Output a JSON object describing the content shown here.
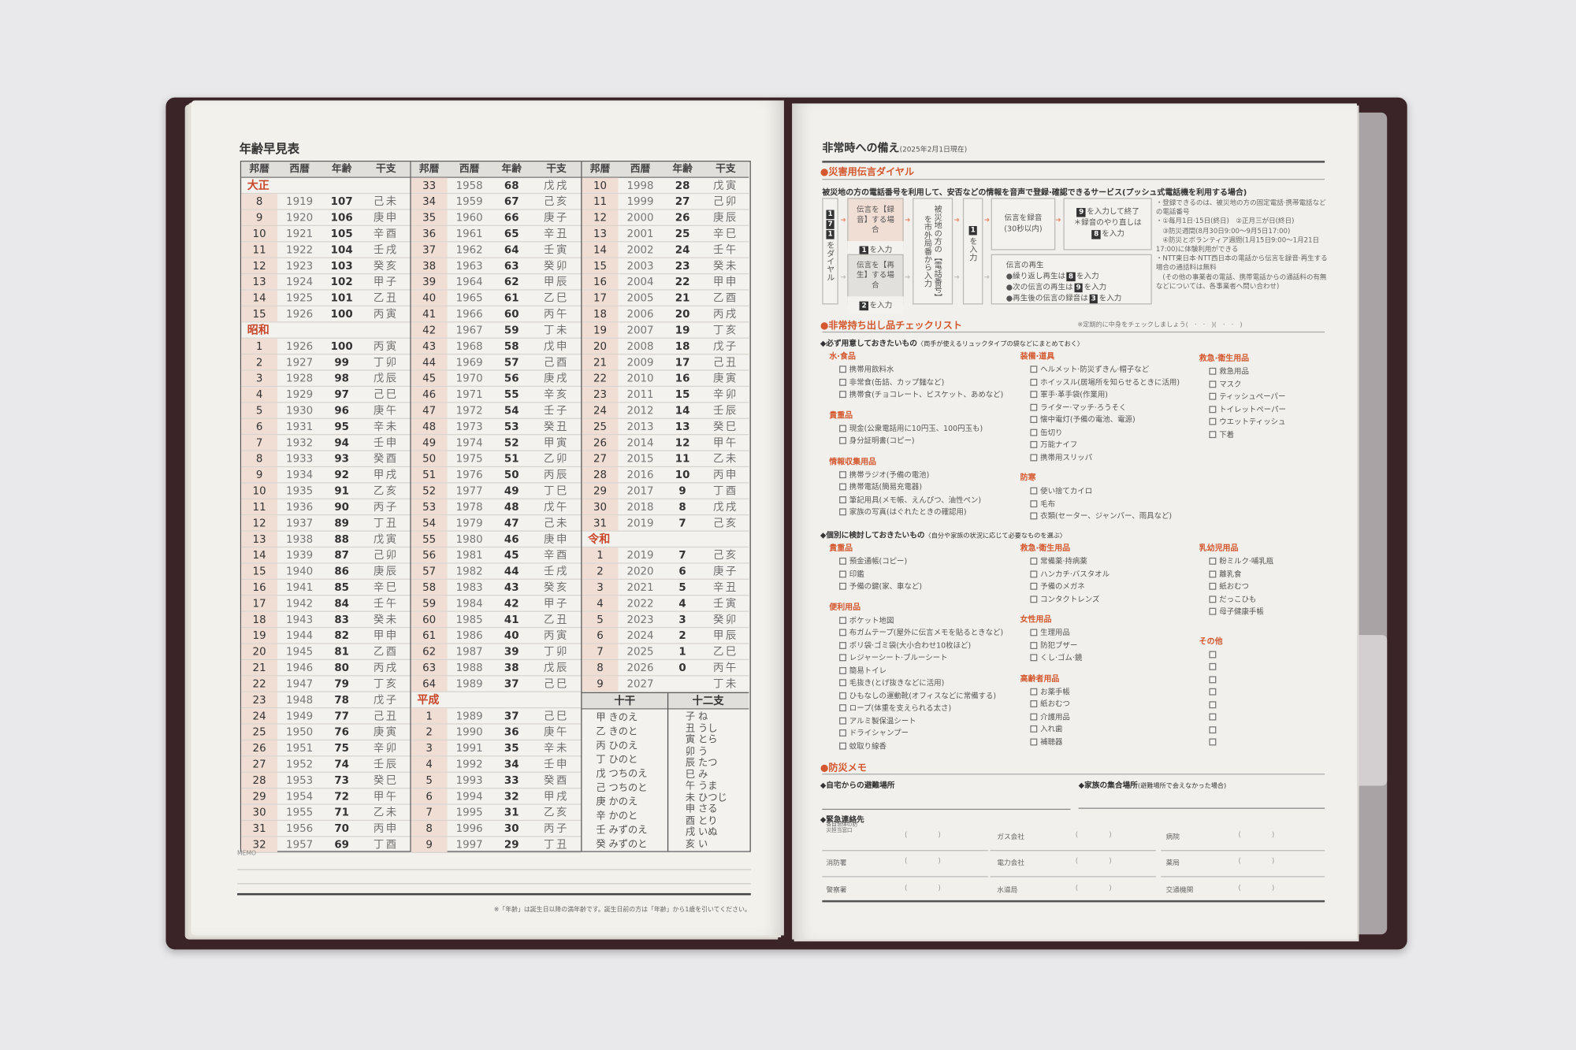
{
  "colors": {
    "accent": "#d4582f",
    "cover": "#3b2427",
    "era_cell": "#f0ddd4"
  },
  "left_page": {
    "title": "年齢早見表",
    "headers": [
      "邦暦",
      "西暦",
      "年齢",
      "干支"
    ],
    "columns": [
      {
        "rows": [
          {
            "era": "大正"
          },
          [
            "8",
            "1919",
            "107",
            "己未"
          ],
          [
            "9",
            "1920",
            "106",
            "庚申"
          ],
          [
            "10",
            "1921",
            "105",
            "辛酉"
          ],
          [
            "11",
            "1922",
            "104",
            "壬戌"
          ],
          [
            "12",
            "1923",
            "103",
            "癸亥"
          ],
          [
            "13",
            "1924",
            "102",
            "甲子"
          ],
          [
            "14",
            "1925",
            "101",
            "乙丑"
          ],
          [
            "15",
            "1926",
            "100",
            "丙寅"
          ],
          {
            "era": "昭和"
          },
          [
            "1",
            "1926",
            "100",
            "丙寅"
          ],
          [
            "2",
            "1927",
            "99",
            "丁卯"
          ],
          [
            "3",
            "1928",
            "98",
            "戊辰"
          ],
          [
            "4",
            "1929",
            "97",
            "己巳"
          ],
          [
            "5",
            "1930",
            "96",
            "庚午"
          ],
          [
            "6",
            "1931",
            "95",
            "辛未"
          ],
          [
            "7",
            "1932",
            "94",
            "壬申"
          ],
          [
            "8",
            "1933",
            "93",
            "癸酉"
          ],
          [
            "9",
            "1934",
            "92",
            "甲戌"
          ],
          [
            "10",
            "1935",
            "91",
            "乙亥"
          ],
          [
            "11",
            "1936",
            "90",
            "丙子"
          ],
          [
            "12",
            "1937",
            "89",
            "丁丑"
          ],
          [
            "13",
            "1938",
            "88",
            "戊寅"
          ],
          [
            "14",
            "1939",
            "87",
            "己卯"
          ],
          [
            "15",
            "1940",
            "86",
            "庚辰"
          ],
          [
            "16",
            "1941",
            "85",
            "辛巳"
          ],
          [
            "17",
            "1942",
            "84",
            "壬午"
          ],
          [
            "18",
            "1943",
            "83",
            "癸未"
          ],
          [
            "19",
            "1944",
            "82",
            "甲申"
          ],
          [
            "20",
            "1945",
            "81",
            "乙酉"
          ],
          [
            "21",
            "1946",
            "80",
            "丙戌"
          ],
          [
            "22",
            "1947",
            "79",
            "丁亥"
          ],
          [
            "23",
            "1948",
            "78",
            "戊子"
          ],
          [
            "24",
            "1949",
            "77",
            "己丑"
          ],
          [
            "25",
            "1950",
            "76",
            "庚寅"
          ],
          [
            "26",
            "1951",
            "75",
            "辛卯"
          ],
          [
            "27",
            "1952",
            "74",
            "壬辰"
          ],
          [
            "28",
            "1953",
            "73",
            "癸巳"
          ],
          [
            "29",
            "1954",
            "72",
            "甲午"
          ],
          [
            "30",
            "1955",
            "71",
            "乙未"
          ],
          [
            "31",
            "1956",
            "70",
            "丙申"
          ],
          [
            "32",
            "1957",
            "69",
            "丁酉"
          ]
        ]
      },
      {
        "rows": [
          [
            "33",
            "1958",
            "68",
            "戊戌"
          ],
          [
            "34",
            "1959",
            "67",
            "己亥"
          ],
          [
            "35",
            "1960",
            "66",
            "庚子"
          ],
          [
            "36",
            "1961",
            "65",
            "辛丑"
          ],
          [
            "37",
            "1962",
            "64",
            "壬寅"
          ],
          [
            "38",
            "1963",
            "63",
            "癸卯"
          ],
          [
            "39",
            "1964",
            "62",
            "甲辰"
          ],
          [
            "40",
            "1965",
            "61",
            "乙巳"
          ],
          [
            "41",
            "1966",
            "60",
            "丙午"
          ],
          [
            "42",
            "1967",
            "59",
            "丁未"
          ],
          [
            "43",
            "1968",
            "58",
            "戊申"
          ],
          [
            "44",
            "1969",
            "57",
            "己酉"
          ],
          [
            "45",
            "1970",
            "56",
            "庚戌"
          ],
          [
            "46",
            "1971",
            "55",
            "辛亥"
          ],
          [
            "47",
            "1972",
            "54",
            "壬子"
          ],
          [
            "48",
            "1973",
            "53",
            "癸丑"
          ],
          [
            "49",
            "1974",
            "52",
            "甲寅"
          ],
          [
            "50",
            "1975",
            "51",
            "乙卯"
          ],
          [
            "51",
            "1976",
            "50",
            "丙辰"
          ],
          [
            "52",
            "1977",
            "49",
            "丁巳"
          ],
          [
            "53",
            "1978",
            "48",
            "戊午"
          ],
          [
            "54",
            "1979",
            "47",
            "己未"
          ],
          [
            "55",
            "1980",
            "46",
            "庚申"
          ],
          [
            "56",
            "1981",
            "45",
            "辛酉"
          ],
          [
            "57",
            "1982",
            "44",
            "壬戌"
          ],
          [
            "58",
            "1983",
            "43",
            "癸亥"
          ],
          [
            "59",
            "1984",
            "42",
            "甲子"
          ],
          [
            "60",
            "1985",
            "41",
            "乙丑"
          ],
          [
            "61",
            "1986",
            "40",
            "丙寅"
          ],
          [
            "62",
            "1987",
            "39",
            "丁卯"
          ],
          [
            "63",
            "1988",
            "38",
            "戊辰"
          ],
          [
            "64",
            "1989",
            "37",
            "己巳"
          ],
          {
            "era": "平成"
          },
          [
            "1",
            "1989",
            "37",
            "己巳"
          ],
          [
            "2",
            "1990",
            "36",
            "庚午"
          ],
          [
            "3",
            "1991",
            "35",
            "辛未"
          ],
          [
            "4",
            "1992",
            "34",
            "壬申"
          ],
          [
            "5",
            "1993",
            "33",
            "癸酉"
          ],
          [
            "6",
            "1994",
            "32",
            "甲戌"
          ],
          [
            "7",
            "1995",
            "31",
            "乙亥"
          ],
          [
            "8",
            "1996",
            "30",
            "丙子"
          ],
          [
            "9",
            "1997",
            "29",
            "丁丑"
          ]
        ]
      },
      {
        "rows": [
          [
            "10",
            "1998",
            "28",
            "戊寅"
          ],
          [
            "11",
            "1999",
            "27",
            "己卯"
          ],
          [
            "12",
            "2000",
            "26",
            "庚辰"
          ],
          [
            "13",
            "2001",
            "25",
            "辛巳"
          ],
          [
            "14",
            "2002",
            "24",
            "壬午"
          ],
          [
            "15",
            "2003",
            "23",
            "癸未"
          ],
          [
            "16",
            "2004",
            "22",
            "甲申"
          ],
          [
            "17",
            "2005",
            "21",
            "乙酉"
          ],
          [
            "18",
            "2006",
            "20",
            "丙戌"
          ],
          [
            "19",
            "2007",
            "19",
            "丁亥"
          ],
          [
            "20",
            "2008",
            "18",
            "戊子"
          ],
          [
            "21",
            "2009",
            "17",
            "己丑"
          ],
          [
            "22",
            "2010",
            "16",
            "庚寅"
          ],
          [
            "23",
            "2011",
            "15",
            "辛卯"
          ],
          [
            "24",
            "2012",
            "14",
            "壬辰"
          ],
          [
            "25",
            "2013",
            "13",
            "癸巳"
          ],
          [
            "26",
            "2014",
            "12",
            "甲午"
          ],
          [
            "27",
            "2015",
            "11",
            "乙未"
          ],
          [
            "28",
            "2016",
            "10",
            "丙申"
          ],
          [
            "29",
            "2017",
            "9",
            "丁酉"
          ],
          [
            "30",
            "2018",
            "8",
            "戊戌"
          ],
          [
            "31",
            "2019",
            "7",
            "己亥"
          ],
          {
            "era": "令和"
          },
          [
            "1",
            "2019",
            "7",
            "己亥"
          ],
          [
            "2",
            "2020",
            "6",
            "庚子"
          ],
          [
            "3",
            "2021",
            "5",
            "辛丑"
          ],
          [
            "4",
            "2022",
            "4",
            "壬寅"
          ],
          [
            "5",
            "2023",
            "3",
            "癸卯"
          ],
          [
            "6",
            "2024",
            "2",
            "甲辰"
          ],
          [
            "7",
            "2025",
            "1",
            "乙巳"
          ],
          [
            "8",
            "2026",
            "0",
            "丙午"
          ],
          [
            "9",
            "2027",
            "",
            "丁未"
          ]
        ]
      }
    ],
    "kan_box": {
      "stems_title": "十干",
      "branches_title": "十二支",
      "stems": [
        "甲 きのえ",
        "乙 きのと",
        "丙 ひのえ",
        "丁 ひのと",
        "戊 つちのえ",
        "己 つちのと",
        "庚 かのえ",
        "辛 かのと",
        "壬 みずのえ",
        "癸 みずのと"
      ],
      "branches": [
        "子 ね",
        "丑 うし",
        "寅 とら",
        "卯 う",
        "辰 たつ",
        "巳 み",
        "午 うま",
        "未 ひつじ",
        "申 さる",
        "酉 とり",
        "戌 いぬ",
        "亥 い"
      ]
    },
    "memo_label": "MEMO",
    "footnote": "※「年齢」は誕生日以降の満年齢です。誕生日前の方は「年齢」から1歳を引いてください。"
  },
  "right_page": {
    "title": "非常時への備え",
    "date": "(2025年2月1日現在)",
    "dial": {
      "heading": "●災害用伝言ダイヤル",
      "description": "被災地の方の電話番号を利用して、安否などの情報を音声で登録·確認できるサービス(プッシュ式電話機を利用する場合)",
      "dial_keys": [
        "1",
        "7",
        "1"
      ],
      "dial_text": "をダイヤル",
      "record_case": "伝言を【録音】する場合",
      "record_key": "1",
      "play_case": "伝言を【再生】する場合",
      "play_key": "2",
      "input_text": "を入力",
      "number_text": "被災地の方の【電話番号】を市外局番から入力",
      "enter_key": "1",
      "record_box": "伝言を録音",
      "record_limit": "(30秒以内)",
      "end_key": "9",
      "end_text": "を入力して終了",
      "redo_text": "＊録音のやり直しは",
      "redo_key": "8",
      "playback_title": "伝言の再生",
      "playback_lines": [
        {
          "pre": "●繰り返し再生は",
          "key": "8",
          "post": "を入力"
        },
        {
          "pre": "●次の伝言の再生は",
          "key": "9",
          "post": "を入力"
        },
        {
          "pre": "●再生後の伝言の録音は",
          "key": "3",
          "post": "を入力"
        }
      ],
      "notes": [
        "・登録できるのは、被災地の方の固定電話·携帯電話などの電話番号",
        "・①毎月1日·15日(終日)　②正月三が日(終日)",
        "　③防災週間(8月30日9:00〜9月5日17:00)",
        "　④防災とボランティア週間(1月15日9:00〜1月21日17:00)に体験利用ができる",
        "・NTT東日本·NTT西日本の電話から伝言を録音·再生する場合の通話料は無料",
        "　(その他の事業者の電話、携帯電話からの通話料の有無などについては、各事業者へ問い合わせ)"
      ]
    },
    "checklist": {
      "heading": "●非常持ち出し品チェックリスト",
      "note": "※定期的に中身をチェックしましょう(　·　·　)(　·　·　)",
      "must": {
        "title": "◆必ず用意しておきたいもの",
        "subtitle": "〈両手が使えるリュックタイプの袋などにまとめておく〉",
        "columns": [
          [
            {
              "heading": "水·食品",
              "items": [
                "携帯用飲料水",
                "非常食(缶詰、カップ麺など)",
                "携帯食(チョコレート、ビスケット、あめなど)"
              ]
            },
            {
              "heading": "貴重品",
              "items": [
                "現金(公衆電話用に10円玉、100円玉も)",
                "身分証明書(コピー)"
              ]
            },
            {
              "heading": "情報収集用品",
              "items": [
                "携帯ラジオ(予備の電池)",
                "携帯電話(簡易充電器)",
                "筆記用具(メモ帳、えんぴつ、油性ペン)",
                "家族の写真(はぐれたときの確認用)"
              ]
            }
          ],
          [
            {
              "heading": "装備·道具",
              "items": [
                "ヘルメット·防災ずきん·帽子など",
                "ホイッスル(居場所を知らせるときに活用)",
                "軍手·革手袋(作業用)",
                "ライター·マッチ·ろうそく",
                "懐中電灯(予備の電池、電源)",
                "缶切り",
                "万能ナイフ",
                "携帯用スリッパ"
              ]
            },
            {
              "heading": "防寒",
              "items": [
                "使い捨てカイロ",
                "毛布",
                "衣類(セーター、ジャンパー、雨具など)"
              ]
            }
          ],
          [
            {
              "heading": "救急·衛生用品",
              "items": [
                "救急用品",
                "マスク",
                "ティッシュペーパー",
                "トイレットペーパー",
                "ウエットティッシュ",
                "下着"
              ]
            }
          ]
        ]
      },
      "optional": {
        "title": "◆個別に検討しておきたいもの",
        "subtitle": "〈自分や家族の状況に応じて必要なものを選ぶ〉",
        "columns": [
          [
            {
              "heading": "貴重品",
              "items": [
                "預金通帳(コピー)",
                "印鑑",
                "予備の鍵(家、車など)"
              ]
            },
            {
              "heading": "便利用品",
              "items": [
                "ポケット地図",
                "布ガムテープ(屋外に伝言メモを貼るときなど)",
                "ポリ袋·ゴミ袋(大小合わせ10枚ほど)",
                "レジャーシート·ブルーシート",
                "簡易トイレ",
                "毛抜き(とげ抜きなどに活用)",
                "ひもなしの運動靴(オフィスなどに常備する)",
                "ロープ(体重を支えられる太さ)",
                "アルミ製保温シート",
                "ドライシャンプー",
                "蚊取り線香"
              ]
            }
          ],
          [
            {
              "heading": "救急·衛生用品",
              "items": [
                "常備薬·持病薬",
                "ハンカチ·バスタオル",
                "予備のメガネ",
                "コンタクトレンズ"
              ]
            },
            {
              "heading": "女性用品",
              "items": [
                "生理用品",
                "防犯ブザー",
                "くし·ゴム·鏡"
              ]
            },
            {
              "heading": "高齢者用品",
              "items": [
                "お薬手帳",
                "紙おむつ",
                "介護用品",
                "入れ歯",
                "補聴器"
              ]
            }
          ],
          [
            {
              "heading": "乳幼児用品",
              "items": [
                "粉ミルク·哺乳瓶",
                "離乳食",
                "紙おむつ",
                "だっこひも",
                "母子健康手帳"
              ]
            },
            {
              "heading": "その他",
              "items": [
                "",
                "",
                "",
                "",
                "",
                "",
                "",
                ""
              ]
            }
          ]
        ]
      }
    },
    "memo": {
      "heading": "●防災メモ",
      "evac_label": "◆自宅からの避難場所",
      "family_label": "◆家族の集合場所",
      "family_note": "(避難場所で会えなかった場合)",
      "contacts_label": "◆緊急連絡先",
      "contacts": [
        [
          "各自治体の防災担当窓口",
          "ガス会社",
          "病院"
        ],
        [
          "消防署",
          "電力会社",
          "薬局"
        ],
        [
          "警察署",
          "水道局",
          "交通機関"
        ]
      ],
      "paren_open": "(",
      "paren_close": ")"
    }
  }
}
